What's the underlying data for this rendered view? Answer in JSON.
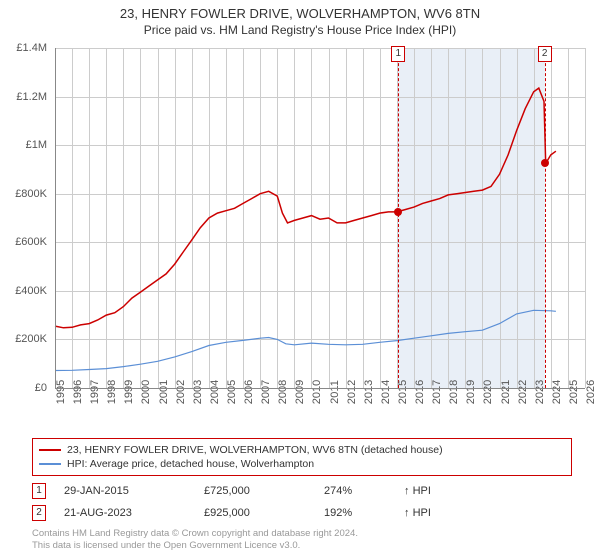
{
  "title": "23, HENRY FOWLER DRIVE, WOLVERHAMPTON, WV6 8TN",
  "subtitle": "Price paid vs. HM Land Registry's House Price Index (HPI)",
  "chart": {
    "type": "line",
    "background_color": "#ffffff",
    "grid_color": "#cccccc",
    "axis_color": "#888888",
    "title_fontsize": 13,
    "subtitle_fontsize": 12,
    "label_fontsize": 11,
    "x": {
      "min": 1995,
      "max": 2026,
      "ticks": [
        1995,
        1996,
        1997,
        1998,
        1999,
        2000,
        2001,
        2002,
        2003,
        2004,
        2005,
        2006,
        2007,
        2008,
        2009,
        2010,
        2011,
        2012,
        2013,
        2014,
        2015,
        2016,
        2017,
        2018,
        2019,
        2020,
        2021,
        2022,
        2023,
        2024,
        2025,
        2026
      ]
    },
    "y": {
      "min": 0,
      "max": 1400000,
      "ticks": [
        0,
        200000,
        400000,
        600000,
        800000,
        1000000,
        1200000,
        1400000
      ],
      "tick_labels": [
        "£0",
        "£200K",
        "£400K",
        "£600K",
        "£800K",
        "£1M",
        "£1.2M",
        "£1.4M"
      ]
    },
    "shaded_region": {
      "x_start": 2015.08,
      "x_end": 2023.64,
      "color": "#c8d7eb",
      "opacity": 0.4
    },
    "series": [
      {
        "name": "property_price",
        "label": "23, HENRY FOWLER DRIVE, WOLVERHAMPTON, WV6 8TN (detached house)",
        "color": "#cc0000",
        "line_width": 1.5,
        "points": [
          [
            1995,
            255000
          ],
          [
            1995.5,
            248000
          ],
          [
            1996,
            250000
          ],
          [
            1996.5,
            260000
          ],
          [
            1997,
            265000
          ],
          [
            1997.5,
            280000
          ],
          [
            1998,
            300000
          ],
          [
            1998.5,
            310000
          ],
          [
            1999,
            335000
          ],
          [
            1999.5,
            370000
          ],
          [
            2000,
            395000
          ],
          [
            2000.5,
            420000
          ],
          [
            2001,
            445000
          ],
          [
            2001.5,
            470000
          ],
          [
            2002,
            510000
          ],
          [
            2002.5,
            560000
          ],
          [
            2003,
            610000
          ],
          [
            2003.5,
            660000
          ],
          [
            2004,
            700000
          ],
          [
            2004.5,
            720000
          ],
          [
            2005,
            730000
          ],
          [
            2005.5,
            740000
          ],
          [
            2006,
            760000
          ],
          [
            2006.5,
            780000
          ],
          [
            2007,
            800000
          ],
          [
            2007.5,
            810000
          ],
          [
            2008,
            790000
          ],
          [
            2008.3,
            720000
          ],
          [
            2008.6,
            680000
          ],
          [
            2009,
            690000
          ],
          [
            2009.5,
            700000
          ],
          [
            2010,
            710000
          ],
          [
            2010.5,
            695000
          ],
          [
            2011,
            700000
          ],
          [
            2011.5,
            680000
          ],
          [
            2012,
            680000
          ],
          [
            2012.5,
            690000
          ],
          [
            2013,
            700000
          ],
          [
            2013.5,
            710000
          ],
          [
            2014,
            720000
          ],
          [
            2014.5,
            725000
          ],
          [
            2015,
            725000
          ],
          [
            2015.5,
            735000
          ],
          [
            2016,
            745000
          ],
          [
            2016.5,
            760000
          ],
          [
            2017,
            770000
          ],
          [
            2017.5,
            780000
          ],
          [
            2018,
            795000
          ],
          [
            2018.5,
            800000
          ],
          [
            2019,
            805000
          ],
          [
            2019.5,
            810000
          ],
          [
            2020,
            815000
          ],
          [
            2020.5,
            830000
          ],
          [
            2021,
            880000
          ],
          [
            2021.5,
            960000
          ],
          [
            2022,
            1060000
          ],
          [
            2022.5,
            1150000
          ],
          [
            2023,
            1220000
          ],
          [
            2023.3,
            1235000
          ],
          [
            2023.6,
            1180000
          ],
          [
            2023.7,
            925000
          ],
          [
            2024,
            960000
          ],
          [
            2024.3,
            975000
          ]
        ]
      },
      {
        "name": "hpi",
        "label": "HPI: Average price, detached house, Wolverhampton",
        "color": "#5b8fd6",
        "line_width": 1.2,
        "points": [
          [
            1995,
            72000
          ],
          [
            1996,
            73000
          ],
          [
            1997,
            76000
          ],
          [
            1998,
            80000
          ],
          [
            1999,
            88000
          ],
          [
            2000,
            98000
          ],
          [
            2001,
            110000
          ],
          [
            2002,
            128000
          ],
          [
            2003,
            150000
          ],
          [
            2004,
            175000
          ],
          [
            2005,
            188000
          ],
          [
            2006,
            196000
          ],
          [
            2007,
            205000
          ],
          [
            2007.5,
            208000
          ],
          [
            2008,
            200000
          ],
          [
            2008.5,
            182000
          ],
          [
            2009,
            178000
          ],
          [
            2010,
            185000
          ],
          [
            2011,
            180000
          ],
          [
            2012,
            178000
          ],
          [
            2013,
            180000
          ],
          [
            2014,
            188000
          ],
          [
            2015,
            195000
          ],
          [
            2016,
            205000
          ],
          [
            2017,
            215000
          ],
          [
            2018,
            225000
          ],
          [
            2019,
            232000
          ],
          [
            2020,
            238000
          ],
          [
            2021,
            265000
          ],
          [
            2022,
            305000
          ],
          [
            2023,
            320000
          ],
          [
            2024,
            318000
          ],
          [
            2024.3,
            316000
          ]
        ]
      }
    ],
    "sale_markers": [
      {
        "n": "1",
        "x": 2015.08,
        "y": 725000,
        "color": "#cc0000"
      },
      {
        "n": "2",
        "x": 2023.64,
        "y": 925000,
        "color": "#cc0000"
      }
    ]
  },
  "legend": {
    "border_color": "#cc0000",
    "items": [
      {
        "color": "#cc0000",
        "label": "23, HENRY FOWLER DRIVE, WOLVERHAMPTON, WV6 8TN (detached house)"
      },
      {
        "color": "#5b8fd6",
        "label": "HPI: Average price, detached house, Wolverhampton"
      }
    ]
  },
  "sales_table": {
    "hpi_label": "HPI",
    "arrow_up": "↑",
    "rows": [
      {
        "n": "1",
        "border_color": "#cc0000",
        "date": "29-JAN-2015",
        "price": "£725,000",
        "pct": "274%"
      },
      {
        "n": "2",
        "border_color": "#cc0000",
        "date": "21-AUG-2023",
        "price": "£925,000",
        "pct": "192%"
      }
    ]
  },
  "footer": {
    "line1": "Contains HM Land Registry data © Crown copyright and database right 2024.",
    "line2": "This data is licensed under the Open Government Licence v3.0."
  }
}
